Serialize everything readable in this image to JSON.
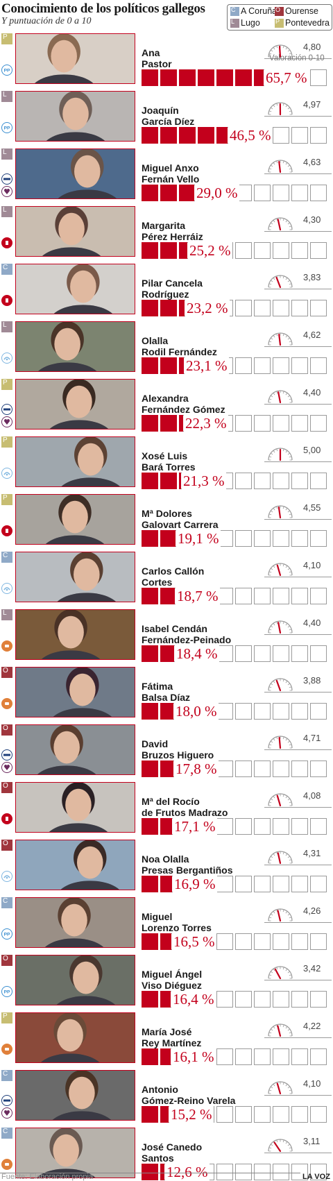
{
  "header": {
    "title": "Conocimiento de los políticos gallegos",
    "subtitle": "Y puntuación de 0 a 10"
  },
  "legend": [
    {
      "code": "C",
      "label": "A Coruña",
      "color": "#8fa9c7"
    },
    {
      "code": "O",
      "label": "Ourense",
      "color": "#a0363d"
    },
    {
      "code": "L",
      "label": "Lugo",
      "color": "#a08a96"
    },
    {
      "code": "P",
      "label": "Pontevedra",
      "color": "#c7bd72"
    }
  ],
  "gauge_label": "Valoración 0-10",
  "footer": {
    "source": "Fuente: Elaboración propia",
    "brand": "LA VOZ"
  },
  "colors": {
    "accent": "#c3001c",
    "pp": "#3a8ed0",
    "psdeg": "#c3001c",
    "bng": "#7fb6e0",
    "anova": "#1f3f7a",
    "podemos": "#6b2a5e",
    "ciudadanos": "#e0803a"
  },
  "chart_data": {
    "type": "bar",
    "unit_bar": "%",
    "cells": 10,
    "cell_value": 10,
    "score_range": [
      0,
      10
    ],
    "rows": [
      {
        "prov": "P",
        "party": "pp",
        "first": "Ana",
        "last": "Pastor",
        "pct": 65.7,
        "pct_label": "65,7 %",
        "score": 4.8,
        "score_label": "4,80"
      },
      {
        "prov": "L",
        "party": "pp",
        "first": "Joaquín",
        "last": "García Díez",
        "pct": 46.5,
        "pct_label": "46,5 %",
        "score": 4.97,
        "score_label": "4,97"
      },
      {
        "prov": "L",
        "party": "anova",
        "first": "Miguel Anxo",
        "last": "Fernán Vello",
        "pct": 29.0,
        "pct_label": "29,0 %",
        "score": 4.63,
        "score_label": "4,63"
      },
      {
        "prov": "L",
        "party": "psdeg",
        "first": "Margarita",
        "last": "Pérez Herráiz",
        "pct": 25.2,
        "pct_label": "25,2 %",
        "score": 4.3,
        "score_label": "4,30"
      },
      {
        "prov": "C",
        "party": "psdeg",
        "first": "Pilar Cancela",
        "last": "Rodríguez",
        "pct": 23.2,
        "pct_label": "23,2 %",
        "score": 3.83,
        "score_label": "3,83"
      },
      {
        "prov": "L",
        "party": "bng",
        "first": "Olalla",
        "last": "Rodil Fernández",
        "pct": 23.1,
        "pct_label": "23,1 %",
        "score": 4.62,
        "score_label": "4,62"
      },
      {
        "prov": "P",
        "party": "anova",
        "first": "Alexandra",
        "last": "Fernández Gómez",
        "pct": 22.3,
        "pct_label": "22,3 %",
        "score": 4.4,
        "score_label": "4,40"
      },
      {
        "prov": "P",
        "party": "bng",
        "first": "Xosé Luis",
        "last": "Bará Torres",
        "pct": 21.3,
        "pct_label": "21,3 %",
        "score": 5.0,
        "score_label": "5,00"
      },
      {
        "prov": "P",
        "party": "psdeg",
        "first": "Mª Dolores",
        "last": "Galovart Carrera",
        "pct": 19.1,
        "pct_label": "19,1 %",
        "score": 4.55,
        "score_label": "4,55"
      },
      {
        "prov": "C",
        "party": "bng",
        "first": "Carlos Callón",
        "last": "Cortes",
        "pct": 18.7,
        "pct_label": "18,7 %",
        "score": 4.1,
        "score_label": "4,10"
      },
      {
        "prov": "L",
        "party": "ciudadanos",
        "first": "Isabel Cendán",
        "last": "Fernández-Peinado",
        "pct": 18.4,
        "pct_label": "18,4 %",
        "score": 4.4,
        "score_label": "4,40"
      },
      {
        "prov": "O",
        "party": "ciudadanos",
        "first": "Fátima",
        "last": "Balsa Díaz",
        "pct": 18.0,
        "pct_label": "18,0 %",
        "score": 3.88,
        "score_label": "3,88"
      },
      {
        "prov": "O",
        "party": "anova",
        "first": "David",
        "last": "Bruzos Higuero",
        "pct": 17.8,
        "pct_label": "17,8 %",
        "score": 4.71,
        "score_label": "4,71"
      },
      {
        "prov": "O",
        "party": "psdeg",
        "first": "Mª del Rocío",
        "last": "de Frutos Madrazo",
        "pct": 17.1,
        "pct_label": "17,1 %",
        "score": 4.08,
        "score_label": "4,08"
      },
      {
        "prov": "O",
        "party": "bng",
        "first": "Noa Olalla",
        "last": "Presas Bergantiños",
        "pct": 16.9,
        "pct_label": "16,9 %",
        "score": 4.31,
        "score_label": "4,31"
      },
      {
        "prov": "C",
        "party": "pp",
        "first": "Miguel",
        "last": "Lorenzo Torres",
        "pct": 16.5,
        "pct_label": "16,5 %",
        "score": 4.26,
        "score_label": "4,26"
      },
      {
        "prov": "O",
        "party": "pp",
        "first": "Miguel Ángel",
        "last": "Viso Diéguez",
        "pct": 16.4,
        "pct_label": "16,4 %",
        "score": 3.42,
        "score_label": "3,42"
      },
      {
        "prov": "P",
        "party": "ciudadanos",
        "first": "María José",
        "last": "Rey Martínez",
        "pct": 16.1,
        "pct_label": "16,1 %",
        "score": 4.22,
        "score_label": "4,22"
      },
      {
        "prov": "C",
        "party": "anova",
        "first": "Antonio",
        "last": "Gómez-Reino Varela",
        "pct": 15.2,
        "pct_label": "15,2 %",
        "score": 4.1,
        "score_label": "4,10"
      },
      {
        "prov": "C",
        "party": "ciudadanos",
        "first": "José Canedo",
        "last": "Santos",
        "pct": 12.6,
        "pct_label": "12,6 %",
        "score": 3.11,
        "score_label": "3,11"
      }
    ]
  }
}
